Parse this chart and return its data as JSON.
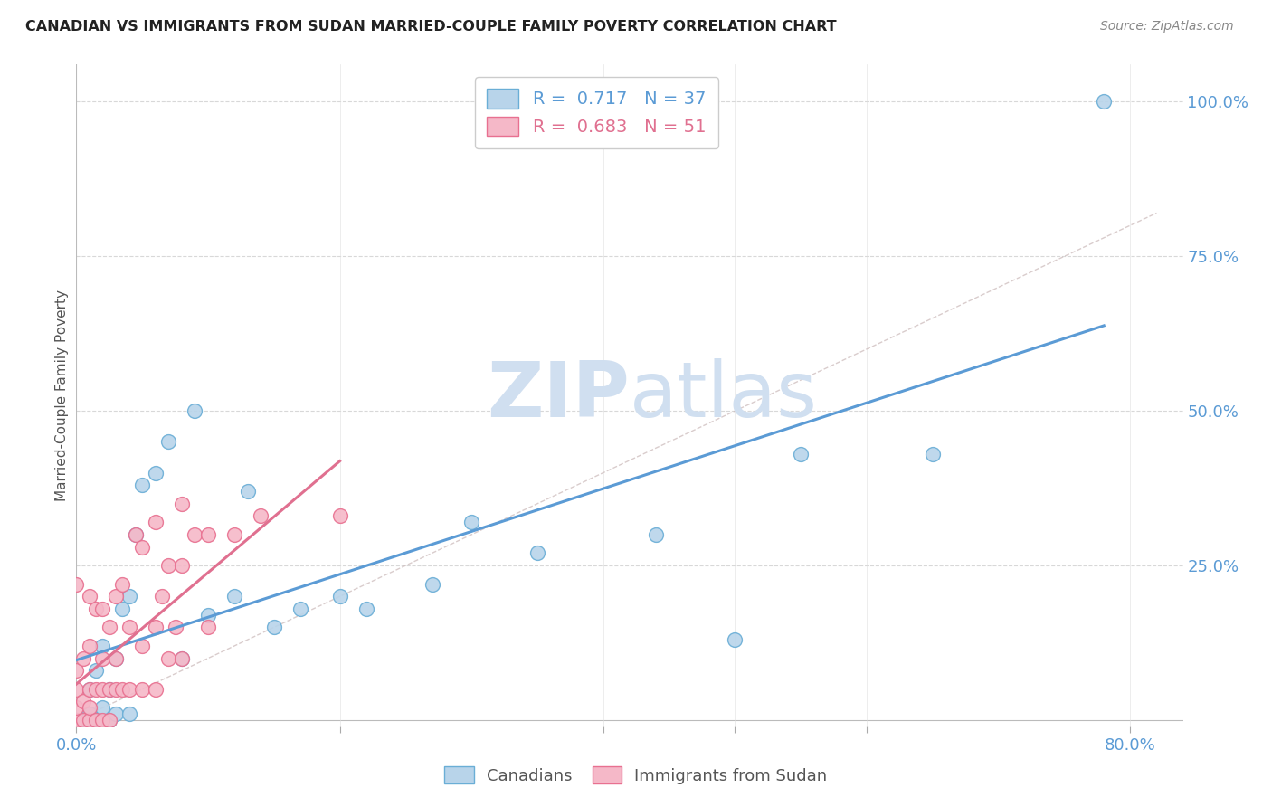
{
  "title": "CANADIAN VS IMMIGRANTS FROM SUDAN MARRIED-COUPLE FAMILY POVERTY CORRELATION CHART",
  "source": "Source: ZipAtlas.com",
  "ylabel": "Married-Couple Family Poverty",
  "xlim": [
    0.0,
    0.84
  ],
  "ylim": [
    -0.01,
    1.06
  ],
  "canadian_R": 0.717,
  "canadian_N": 37,
  "sudan_R": 0.683,
  "sudan_N": 51,
  "canadian_color": "#b8d4ea",
  "sudan_color": "#f5b8c8",
  "canadian_edge_color": "#6aaed6",
  "sudan_edge_color": "#e87090",
  "canadian_line_color": "#5b9bd5",
  "sudan_line_color": "#e07090",
  "title_color": "#222222",
  "tick_color_right": "#5b9bd5",
  "tick_color_bottom": "#5b9bd5",
  "watermark_color": "#d0dff0",
  "grid_color": "#d8d8d8",
  "diag_color": "#d0c0c0",
  "canadians_x": [
    0.0,
    0.005,
    0.008,
    0.01,
    0.01,
    0.015,
    0.015,
    0.02,
    0.02,
    0.025,
    0.025,
    0.03,
    0.03,
    0.035,
    0.04,
    0.04,
    0.045,
    0.05,
    0.06,
    0.07,
    0.08,
    0.09,
    0.1,
    0.12,
    0.13,
    0.15,
    0.17,
    0.2,
    0.22,
    0.27,
    0.3,
    0.35,
    0.44,
    0.5,
    0.55,
    0.65,
    0.78
  ],
  "canadians_y": [
    0.0,
    0.0,
    0.0,
    0.01,
    0.05,
    0.0,
    0.08,
    0.02,
    0.12,
    0.0,
    0.05,
    0.01,
    0.1,
    0.18,
    0.01,
    0.2,
    0.3,
    0.38,
    0.4,
    0.45,
    0.1,
    0.5,
    0.17,
    0.2,
    0.37,
    0.15,
    0.18,
    0.2,
    0.18,
    0.22,
    0.32,
    0.27,
    0.3,
    0.13,
    0.43,
    0.43,
    1.0
  ],
  "sudan_x": [
    0.0,
    0.0,
    0.0,
    0.0,
    0.0,
    0.0,
    0.005,
    0.005,
    0.005,
    0.01,
    0.01,
    0.01,
    0.01,
    0.01,
    0.015,
    0.015,
    0.015,
    0.02,
    0.02,
    0.02,
    0.02,
    0.025,
    0.025,
    0.025,
    0.03,
    0.03,
    0.03,
    0.035,
    0.035,
    0.04,
    0.04,
    0.045,
    0.05,
    0.05,
    0.05,
    0.06,
    0.06,
    0.06,
    0.065,
    0.07,
    0.07,
    0.075,
    0.08,
    0.08,
    0.08,
    0.09,
    0.1,
    0.1,
    0.12,
    0.14,
    0.2
  ],
  "sudan_y": [
    0.0,
    0.0,
    0.02,
    0.05,
    0.08,
    0.22,
    0.0,
    0.03,
    0.1,
    0.0,
    0.02,
    0.05,
    0.12,
    0.2,
    0.0,
    0.05,
    0.18,
    0.0,
    0.05,
    0.1,
    0.18,
    0.0,
    0.05,
    0.15,
    0.05,
    0.1,
    0.2,
    0.05,
    0.22,
    0.05,
    0.15,
    0.3,
    0.05,
    0.12,
    0.28,
    0.05,
    0.15,
    0.32,
    0.2,
    0.1,
    0.25,
    0.15,
    0.1,
    0.25,
    0.35,
    0.3,
    0.15,
    0.3,
    0.3,
    0.33,
    0.33
  ],
  "xtick_positions": [
    0.0,
    0.2,
    0.4,
    0.5,
    0.6,
    0.8
  ],
  "xtick_labels_shown": {
    "0.0": "0.0%",
    "0.8": "80.0%"
  },
  "ytick_right_positions": [
    0.25,
    0.5,
    0.75,
    1.0
  ],
  "ytick_right_labels": [
    "25.0%",
    "50.0%",
    "75.0%",
    "100.0%"
  ]
}
